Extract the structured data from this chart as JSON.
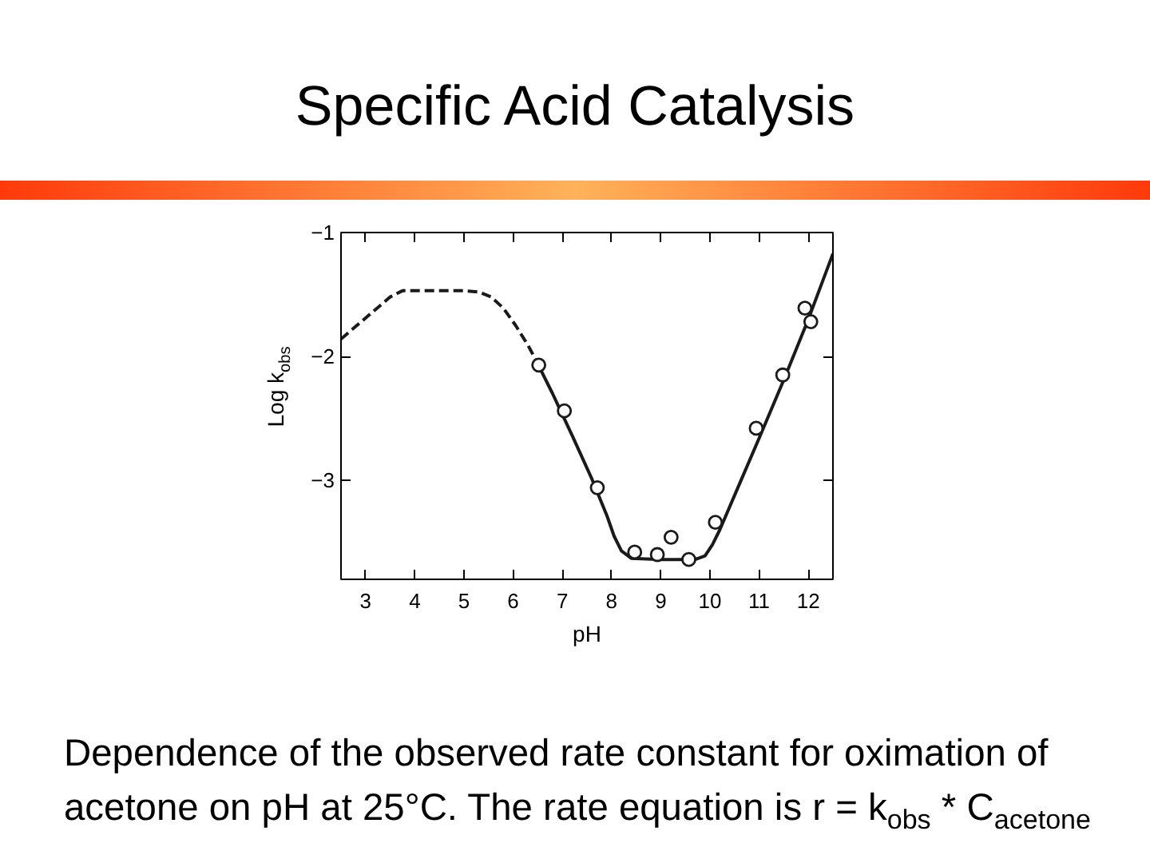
{
  "chart_data": {
    "type": "line",
    "title": "Specific Acid Catalysis",
    "xlabel": "pH",
    "ylabel": "Log k$_{obs}$",
    "annotations": [
      "Dependence of the observed rate constant for oximation of acetone on pH at 25°C. The rate equation is r = k$_{obs}$ * C$_{acetone}$"
    ],
    "xlim": [
      2.5,
      12.5
    ],
    "ylim": [
      -3.8,
      -1
    ],
    "xticks": [
      3,
      4,
      5,
      6,
      7,
      8,
      9,
      10,
      11,
      12
    ],
    "yticks": [
      -1,
      -2,
      -3
    ],
    "series": [
      {
        "line_style": "dashed",
        "color": "#1a1a1a",
        "x": [
          2.5,
          3.0,
          3.5,
          3.75,
          4.0,
          5.0,
          5.3,
          5.55,
          5.8,
          6.05,
          6.3,
          6.45
        ],
        "values": [
          -1.86,
          -1.69,
          -1.52,
          -1.47,
          -1.47,
          -1.47,
          -1.48,
          -1.52,
          -1.61,
          -1.75,
          -1.91,
          -2.02
        ]
      },
      {
        "line_style": "solid",
        "color": "#1a1a1a",
        "x": [
          6.45,
          6.8,
          7.2,
          7.6,
          7.9,
          8.05,
          8.2,
          8.4,
          9.0,
          9.7,
          9.9,
          10.05,
          10.2,
          10.6,
          11.0,
          11.5,
          12.0,
          12.5
        ],
        "values": [
          -2.02,
          -2.3,
          -2.64,
          -2.99,
          -3.28,
          -3.45,
          -3.57,
          -3.63,
          -3.64,
          -3.64,
          -3.61,
          -3.52,
          -3.4,
          -3.03,
          -2.66,
          -2.19,
          -1.7,
          -1.17
        ]
      },
      {
        "type": "scatter",
        "marker": "circle",
        "color": "#1a1a1a",
        "x": [
          6.52,
          7.04,
          7.71,
          8.47,
          8.93,
          9.21,
          9.57,
          10.11,
          10.94,
          11.48,
          11.93,
          12.05
        ],
        "values": [
          -2.07,
          -2.44,
          -3.06,
          -3.58,
          -3.6,
          -3.46,
          -3.64,
          -3.34,
          -2.58,
          -2.15,
          -1.61,
          -1.72
        ]
      }
    ]
  }
}
